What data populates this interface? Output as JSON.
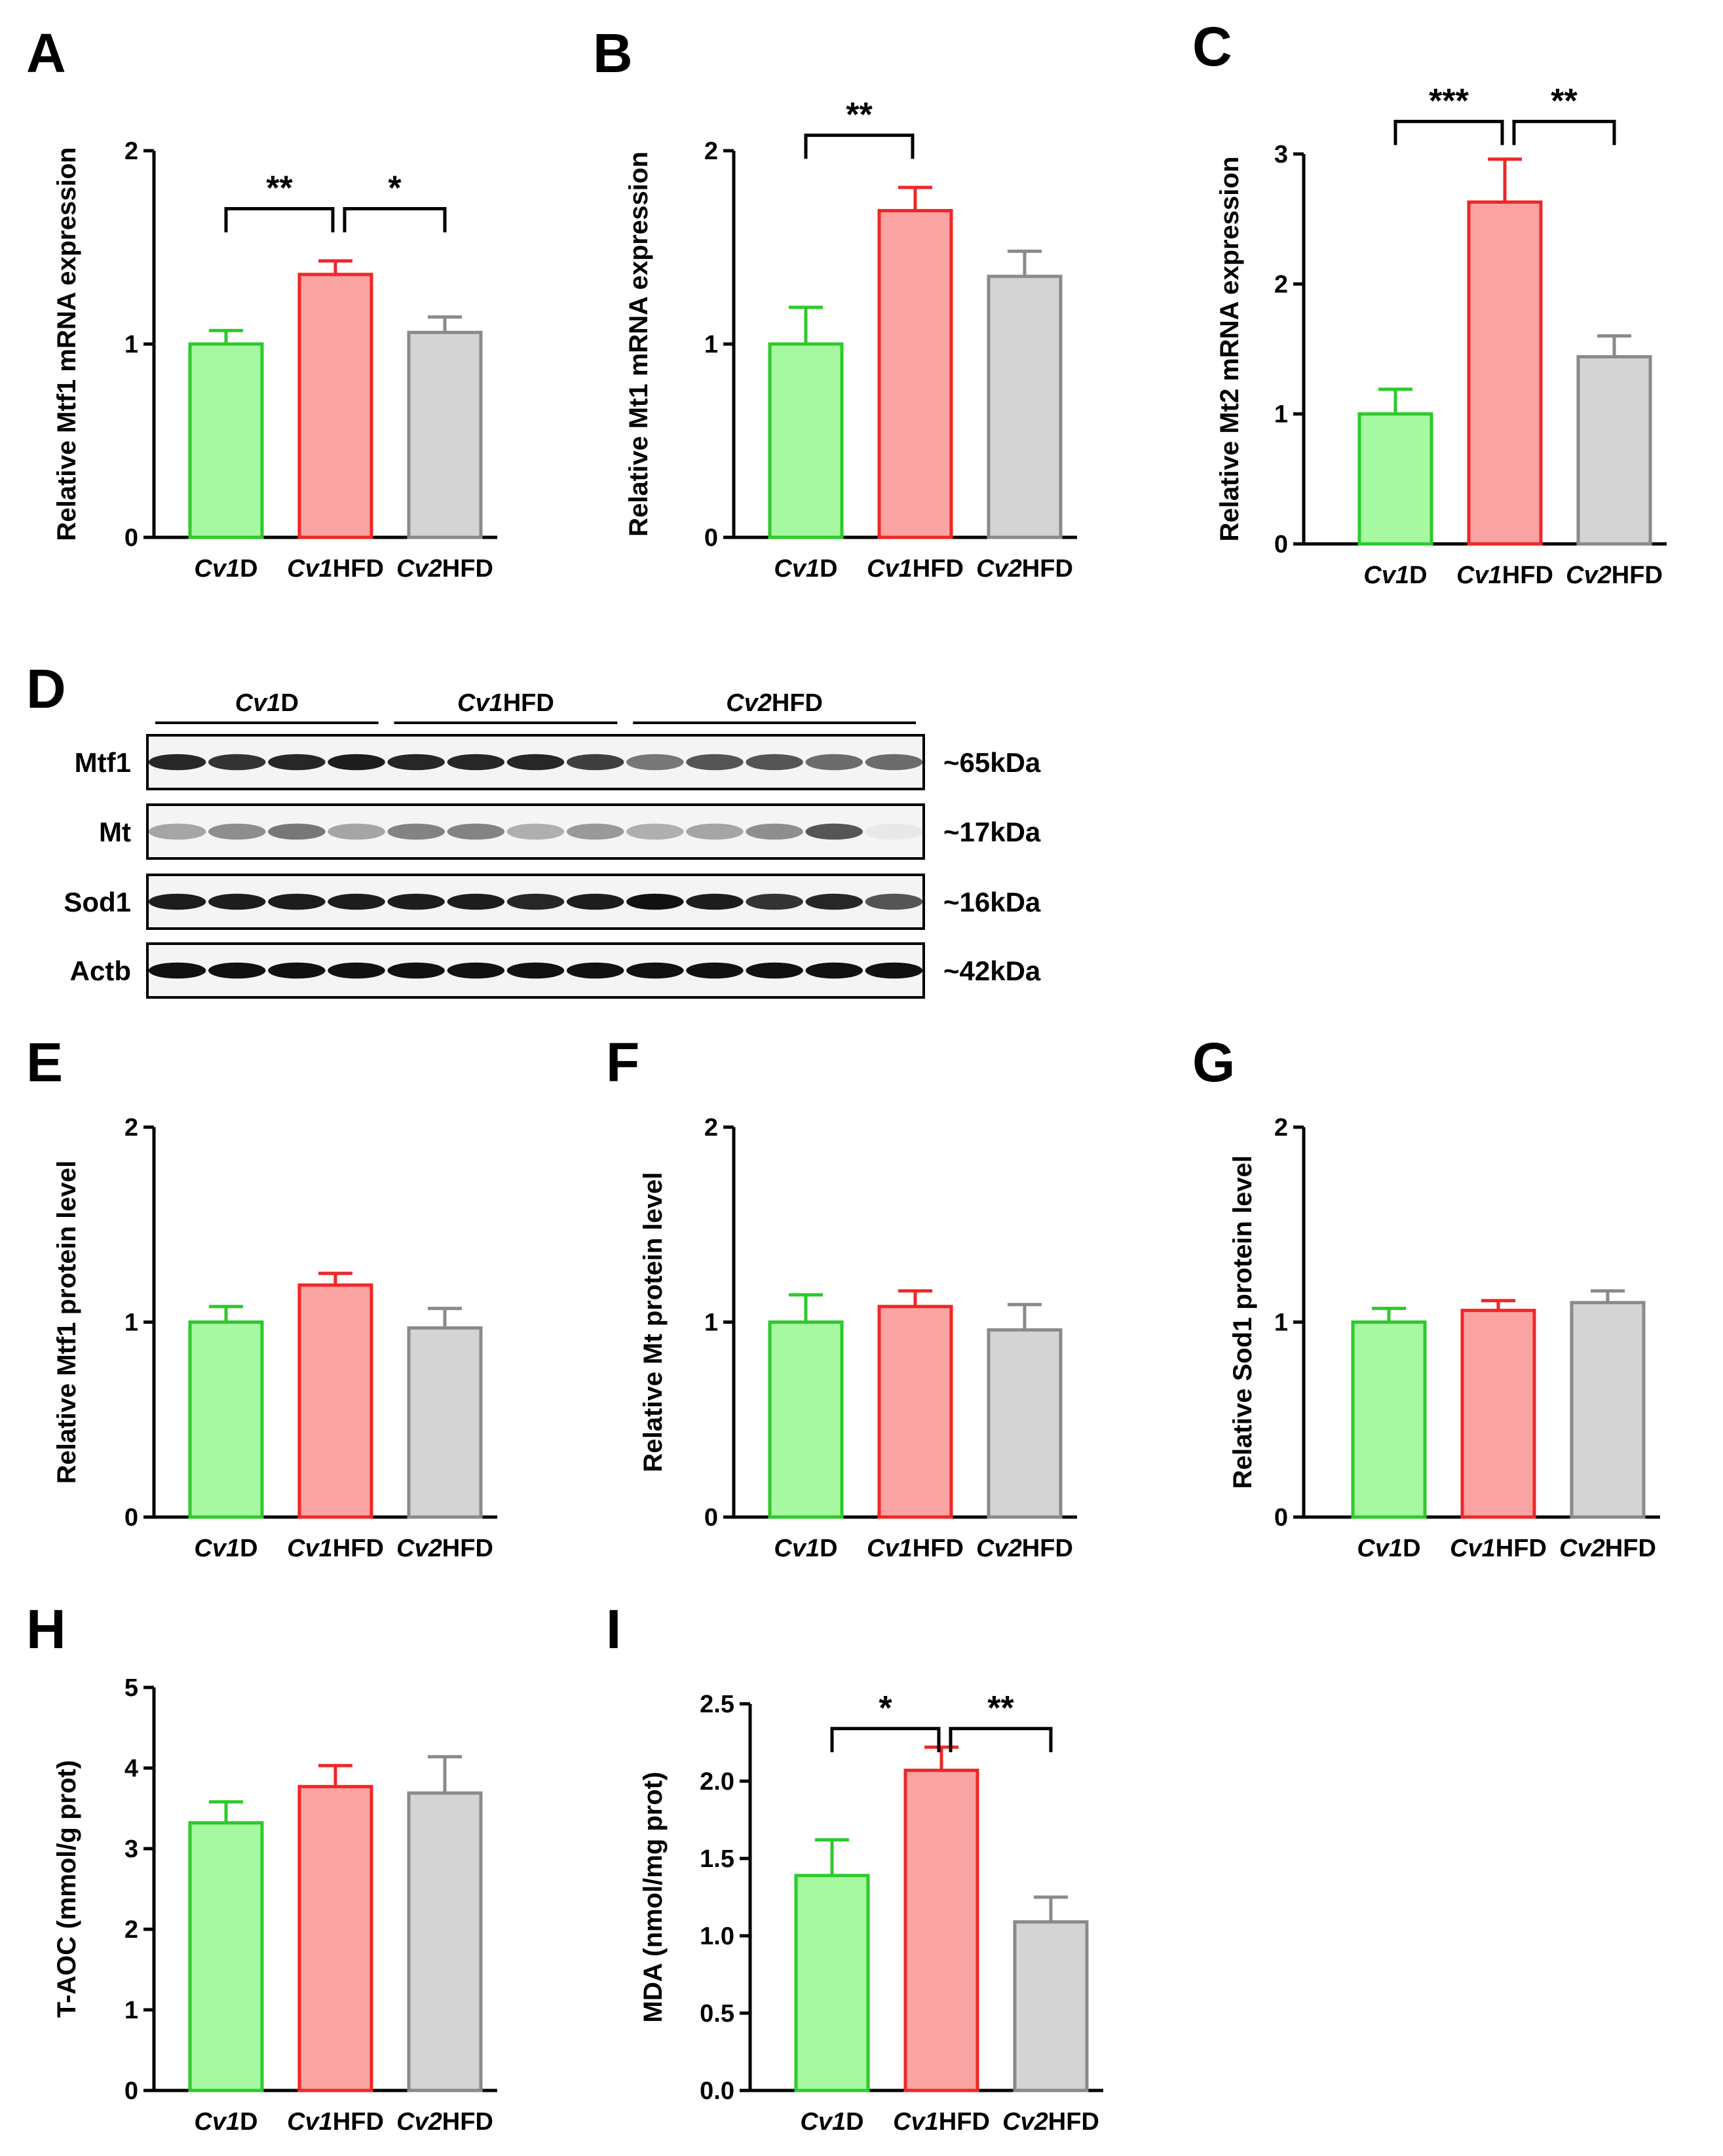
{
  "figure": {
    "group_names": [
      {
        "italic": "Cv1",
        "plain": "D"
      },
      {
        "italic": "Cv1",
        "plain": "HFD"
      },
      {
        "italic": "Cv2",
        "plain": "HFD"
      }
    ],
    "bar_colors": {
      "green_fill": "#a6f9a0",
      "green_edge": "#2ec92b",
      "red_fill": "#f9a3a3",
      "red_edge": "#ef2727",
      "gray_fill": "#d4d4d4",
      "gray_edge": "#8a8a8a",
      "axis": "#000000"
    },
    "blot": {
      "panel_label": "D",
      "groups": [
        {
          "italic": "Cv1",
          "plain": "D",
          "lanes": 4
        },
        {
          "italic": "Cv1",
          "plain": "HFD",
          "lanes": 4
        },
        {
          "italic": "Cv2",
          "plain": "HFD",
          "lanes": 5
        }
      ],
      "rows": [
        {
          "name": "Mtf1",
          "size": "~65kDa",
          "intensity": [
            0.9,
            0.85,
            0.9,
            0.95,
            0.9,
            0.9,
            0.9,
            0.8,
            0.55,
            0.7,
            0.7,
            0.6,
            0.6
          ]
        },
        {
          "name": "Mt",
          "size": "~17kDa",
          "intensity": [
            0.35,
            0.45,
            0.55,
            0.35,
            0.5,
            0.5,
            0.3,
            0.4,
            0.3,
            0.35,
            0.45,
            0.7,
            0.05
          ]
        },
        {
          "name": "Sod1",
          "size": "~16kDa",
          "intensity": [
            0.95,
            0.95,
            0.95,
            0.95,
            0.95,
            0.95,
            0.9,
            0.95,
            1.0,
            0.95,
            0.85,
            0.9,
            0.7
          ]
        },
        {
          "name": "Actb",
          "size": "~42kDa",
          "intensity": [
            1,
            1,
            1,
            1,
            1,
            1,
            1,
            1,
            1,
            1,
            1,
            1,
            1
          ]
        }
      ]
    }
  },
  "chart_data": [
    {
      "panel": "A",
      "type": "bar",
      "categories": [
        "Cv1D",
        "Cv1HFD",
        "Cv2HFD"
      ],
      "values": [
        1.0,
        1.36,
        1.06
      ],
      "errors": [
        0.07,
        0.07,
        0.08
      ],
      "ylabel": "Relative Mtf1 mRNA expression",
      "ylim": [
        0,
        2
      ],
      "yticks": [
        "0",
        "1",
        "2"
      ],
      "significance": [
        {
          "from": 0,
          "to": 1,
          "label": "**",
          "y": 1.7
        },
        {
          "from": 1,
          "to": 2,
          "label": "*",
          "y": 1.7
        }
      ]
    },
    {
      "panel": "B",
      "type": "bar",
      "categories": [
        "Cv1D",
        "Cv1HFD",
        "Cv2HFD"
      ],
      "values": [
        1.0,
        1.69,
        1.35
      ],
      "errors": [
        0.19,
        0.12,
        0.13
      ],
      "ylabel": "Relative Mt1 mRNA expression",
      "ylim": [
        0,
        2
      ],
      "yticks": [
        "0",
        "1",
        "2"
      ],
      "significance": [
        {
          "from": 0,
          "to": 1,
          "label": "**",
          "y": 2.08
        }
      ]
    },
    {
      "panel": "C",
      "type": "bar",
      "categories": [
        "Cv1D",
        "Cv1HFD",
        "Cv2HFD"
      ],
      "values": [
        1.0,
        2.63,
        1.44
      ],
      "errors": [
        0.19,
        0.33,
        0.16
      ],
      "ylabel": "Relative Mt2 mRNA expression",
      "ylim": [
        0,
        3
      ],
      "yticks": [
        "0",
        "1",
        "2",
        "3"
      ],
      "significance": [
        {
          "from": 0,
          "to": 1,
          "label": "***",
          "y": 3.25
        },
        {
          "from": 1,
          "to": 2,
          "label": "**",
          "y": 3.25
        }
      ]
    },
    {
      "panel": "E",
      "type": "bar",
      "categories": [
        "Cv1D",
        "Cv1HFD",
        "Cv2HFD"
      ],
      "values": [
        1.0,
        1.19,
        0.97
      ],
      "errors": [
        0.08,
        0.06,
        0.1
      ],
      "ylabel": "Relative Mtf1 protein level",
      "ylim": [
        0,
        2
      ],
      "yticks": [
        "0",
        "1",
        "2"
      ],
      "significance": []
    },
    {
      "panel": "F",
      "type": "bar",
      "categories": [
        "Cv1D",
        "Cv1HFD",
        "Cv2HFD"
      ],
      "values": [
        1.0,
        1.08,
        0.96
      ],
      "errors": [
        0.14,
        0.08,
        0.13
      ],
      "ylabel": "Relative Mt protein level",
      "ylim": [
        0,
        2
      ],
      "yticks": [
        "0",
        "1",
        "2"
      ],
      "significance": []
    },
    {
      "panel": "G",
      "type": "bar",
      "categories": [
        "Cv1D",
        "Cv1HFD",
        "Cv2HFD"
      ],
      "values": [
        1.0,
        1.06,
        1.1
      ],
      "errors": [
        0.07,
        0.05,
        0.06
      ],
      "ylabel": "Relative Sod1 protein level",
      "ylim": [
        0,
        2
      ],
      "yticks": [
        "0",
        "1",
        "2"
      ],
      "significance": []
    },
    {
      "panel": "H",
      "type": "bar",
      "categories": [
        "Cv1D",
        "Cv1HFD",
        "Cv2HFD"
      ],
      "values": [
        3.32,
        3.77,
        3.69
      ],
      "errors": [
        0.26,
        0.26,
        0.45
      ],
      "ylabel": "T-AOC (mmol/g prot)",
      "ylim": [
        0,
        5
      ],
      "yticks": [
        "0",
        "1",
        "2",
        "3",
        "4",
        "5"
      ],
      "significance": []
    },
    {
      "panel": "I",
      "type": "bar",
      "categories": [
        "Cv1D",
        "Cv1HFD",
        "Cv2HFD"
      ],
      "values": [
        1.39,
        2.07,
        1.09
      ],
      "errors": [
        0.23,
        0.15,
        0.16
      ],
      "ylabel": "MDA (nmol/mg prot)",
      "ylim": [
        0,
        2.5
      ],
      "yticks": [
        "0.0",
        "0.5",
        "1.0",
        "1.5",
        "2.0",
        "2.5"
      ],
      "significance": [
        {
          "from": 0,
          "to": 1,
          "label": "*",
          "y": 2.34
        },
        {
          "from": 1,
          "to": 2,
          "label": "**",
          "y": 2.34
        }
      ]
    }
  ]
}
